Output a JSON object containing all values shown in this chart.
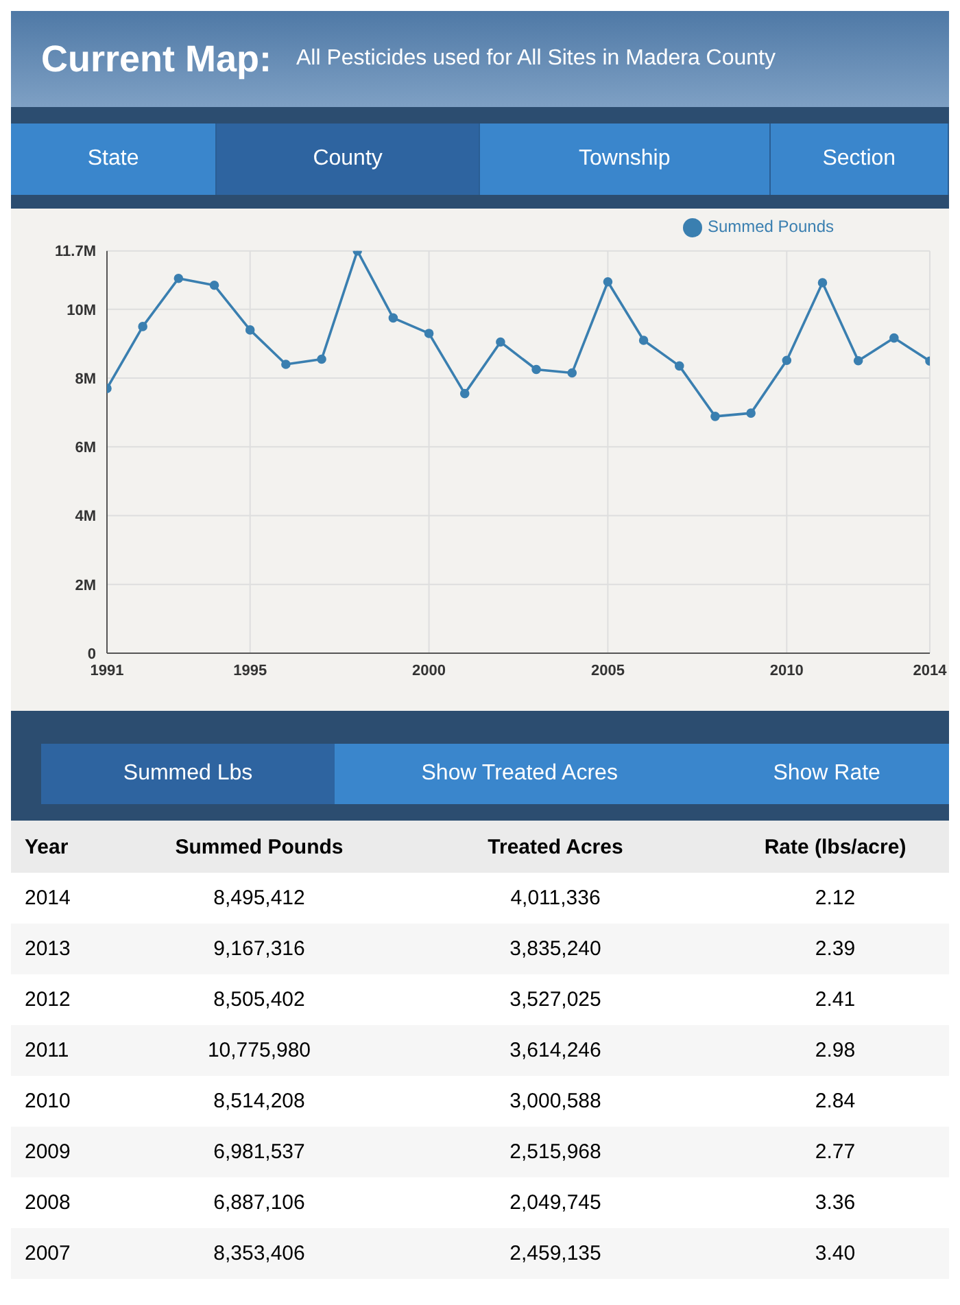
{
  "chart_data": [
    {
      "type": "line",
      "title": "Current Map:",
      "subtitle": "All Pesticides used for All Sites in Madera County",
      "x": [
        1991,
        1992,
        1993,
        1994,
        1995,
        1996,
        1997,
        1998,
        1999,
        2000,
        2001,
        2002,
        2003,
        2004,
        2005,
        2006,
        2007,
        2008,
        2009,
        2010,
        2011,
        2012,
        2013,
        2014
      ],
      "series": [
        {
          "name": "Summed Pounds",
          "color": "#3a7fb0",
          "values": [
            7700000,
            9500000,
            10900000,
            10700000,
            9400000,
            8400000,
            8550000,
            11700000,
            9750000,
            9300000,
            7550000,
            9050000,
            8250000,
            8150000,
            10800000,
            9100000,
            8353406,
            6887106,
            6981537,
            8514208,
            10775980,
            8505402,
            9167316,
            8495412
          ]
        }
      ],
      "xlim": [
        1991,
        2014
      ],
      "xticks": [
        1991,
        1995,
        2000,
        2005,
        2010,
        2014
      ],
      "ylim": [
        0,
        11700000
      ],
      "yticks": [
        0,
        {
          "value": 2000000,
          "label": "2M"
        },
        {
          "value": 4000000,
          "label": "4M"
        },
        {
          "value": 6000000,
          "label": "6M"
        },
        {
          "value": 8000000,
          "label": "8M"
        },
        {
          "value": 10000000,
          "label": "10M"
        },
        {
          "value": 11700000,
          "label": "11.7M"
        }
      ],
      "grid": true,
      "legend": "top right",
      "marker": "circle",
      "line_style": "solid"
    },
    {
      "type": "other",
      "annotations": [
        "State",
        "County",
        "Township",
        "Section"
      ]
    },
    {
      "type": "other",
      "annotations": [
        "Summed Lbs",
        "Show Treated Acres",
        "Show Rate"
      ]
    },
    {
      "type": "heatmap",
      "ylabel": "Year",
      "categories": [
        "Summed Pounds",
        "Treated Acres",
        "Rate (lbs/acre)"
      ],
      "y_categories": [
        "2014",
        "2013",
        "2012",
        "2011",
        "2010",
        "2009",
        "2008",
        "2007"
      ],
      "cells": [
        [
          8495412,
          4011336,
          2.12
        ],
        [
          9167316,
          3835240,
          2.39
        ],
        [
          8505402,
          3527025,
          2.41
        ],
        [
          10775980,
          3614246,
          2.98
        ],
        [
          8514208,
          3000588,
          2.84
        ],
        [
          6981537,
          2515968,
          2.77
        ],
        [
          6887106,
          2049745,
          3.36
        ],
        [
          8353406,
          2459135,
          3.4
        ]
      ],
      "cell_labels": [
        [
          "8,495,412",
          "4,011,336",
          "2.12"
        ],
        [
          "9,167,316",
          "3,835,240",
          "2.39"
        ],
        [
          "8,505,402",
          "3,527,025",
          "2.41"
        ],
        [
          "10,775,980",
          "3,614,246",
          "2.98"
        ],
        [
          "8,514,208",
          "3,000,588",
          "2.84"
        ],
        [
          "6,981,537",
          "2,515,968",
          "2.77"
        ],
        [
          "6,887,106",
          "2,049,745",
          "3.36"
        ],
        [
          "8,353,406",
          "2,459,135",
          "3.40"
        ]
      ]
    }
  ]
}
